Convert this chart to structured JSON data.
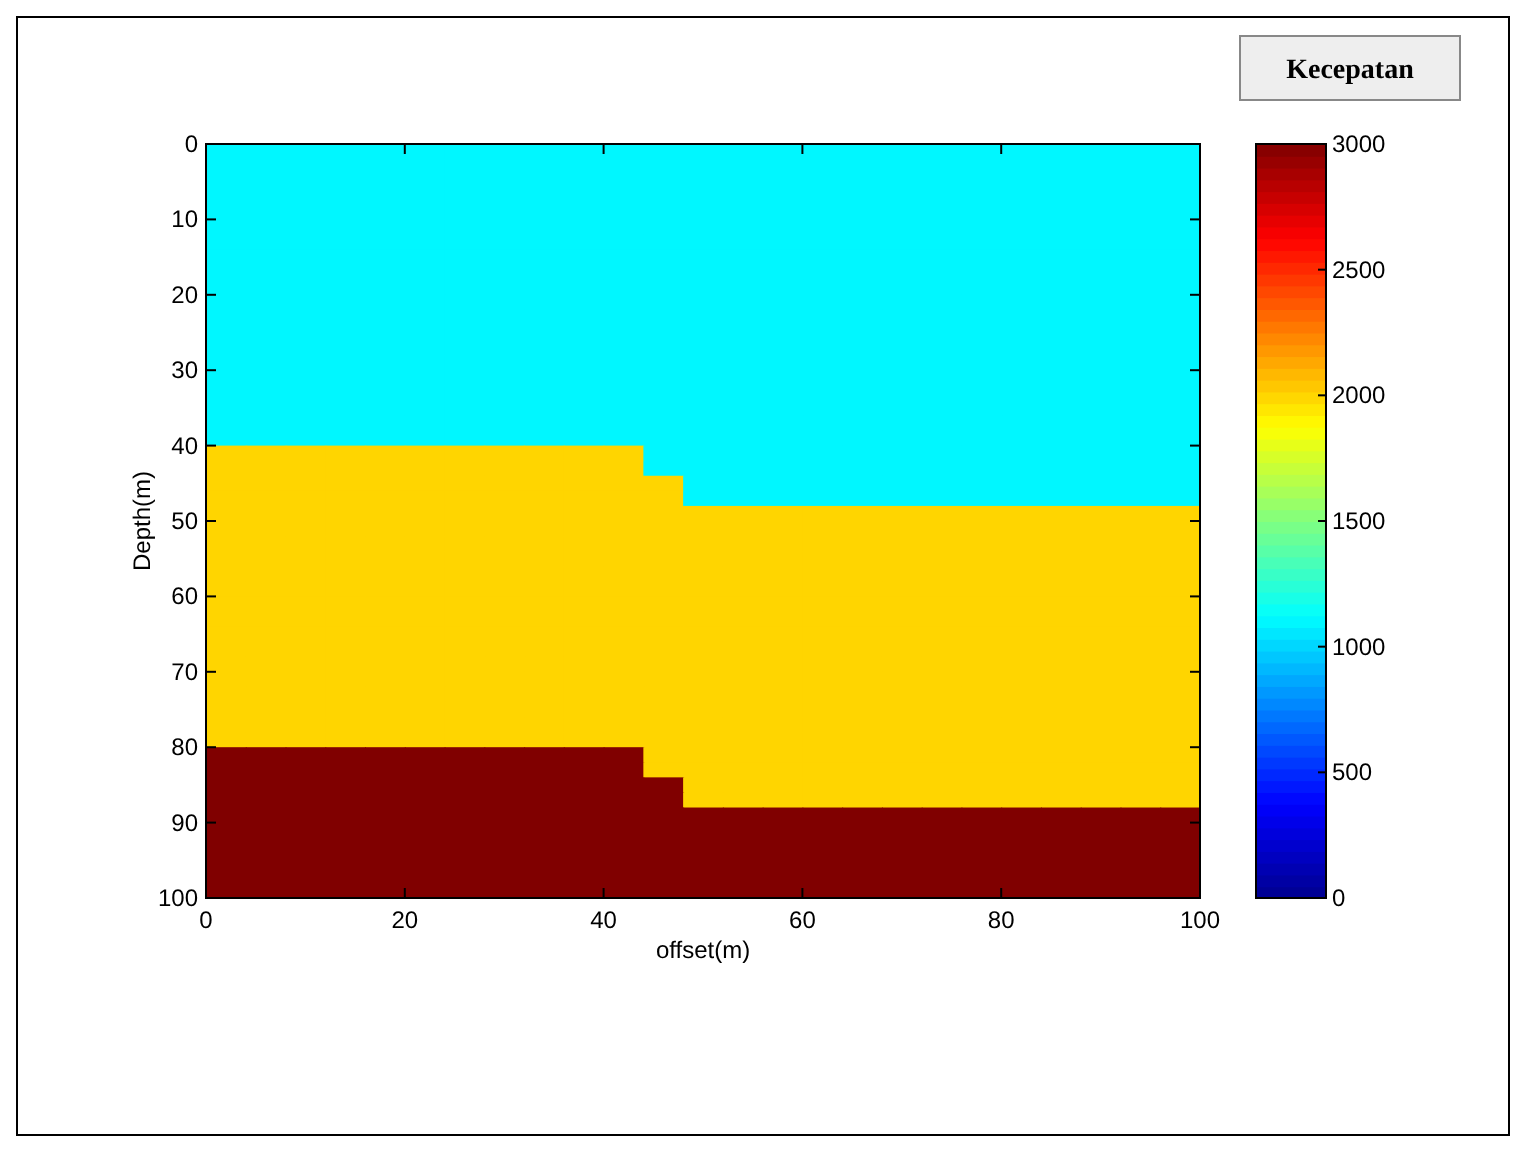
{
  "chart_data": {
    "type": "heatmap",
    "xlabel": "offset(m)",
    "ylabel": "Depth(m)",
    "clabel": "Kecepatan",
    "xlim": [
      0,
      100
    ],
    "xticks": [
      0,
      20,
      40,
      60,
      80,
      100
    ],
    "ylim": [
      100,
      0
    ],
    "yticks": [
      0,
      10,
      20,
      30,
      40,
      50,
      60,
      70,
      80,
      90,
      100
    ],
    "clim": [
      0,
      3000
    ],
    "cticks": [
      0,
      500,
      1000,
      1500,
      2000,
      2500,
      3000
    ],
    "cells": [
      [
        1100,
        1100,
        1100,
        1100,
        1100,
        1100,
        1100,
        1100,
        1100,
        1100,
        1100,
        1100,
        1100,
        1100,
        1100,
        1100,
        1100,
        1100,
        1100,
        1100,
        1100,
        1100,
        1100,
        1100,
        1100
      ],
      [
        1100,
        1100,
        1100,
        1100,
        1100,
        1100,
        1100,
        1100,
        1100,
        1100,
        1100,
        1100,
        1100,
        1100,
        1100,
        1100,
        1100,
        1100,
        1100,
        1100,
        1100,
        1100,
        1100,
        1100,
        1100
      ],
      [
        1100,
        1100,
        1100,
        1100,
        1100,
        1100,
        1100,
        1100,
        1100,
        1100,
        1100,
        1100,
        1100,
        1100,
        1100,
        1100,
        1100,
        1100,
        1100,
        1100,
        1100,
        1100,
        1100,
        1100,
        1100
      ],
      [
        1100,
        1100,
        1100,
        1100,
        1100,
        1100,
        1100,
        1100,
        1100,
        1100,
        1100,
        1100,
        1100,
        1100,
        1100,
        1100,
        1100,
        1100,
        1100,
        1100,
        1100,
        1100,
        1100,
        1100,
        1100
      ],
      [
        1100,
        1100,
        1100,
        1100,
        1100,
        1100,
        1100,
        1100,
        1100,
        1100,
        1100,
        1100,
        1100,
        1100,
        1100,
        1100,
        1100,
        1100,
        1100,
        1100,
        1100,
        1100,
        1100,
        1100,
        1100
      ],
      [
        1100,
        1100,
        1100,
        1100,
        1100,
        1100,
        1100,
        1100,
        1100,
        1100,
        1100,
        1100,
        1100,
        1100,
        1100,
        1100,
        1100,
        1100,
        1100,
        1100,
        1100,
        1100,
        1100,
        1100,
        1100
      ],
      [
        1100,
        1100,
        1100,
        1100,
        1100,
        1100,
        1100,
        1100,
        1100,
        1100,
        1100,
        1100,
        1100,
        1100,
        1100,
        1100,
        1100,
        1100,
        1100,
        1100,
        1100,
        1100,
        1100,
        1100,
        1100
      ],
      [
        1100,
        1100,
        1100,
        1100,
        1100,
        1100,
        1100,
        1100,
        1100,
        1100,
        1100,
        1100,
        1100,
        1100,
        1100,
        1100,
        1100,
        1100,
        1100,
        1100,
        1100,
        1100,
        1100,
        1100,
        1100
      ],
      [
        1100,
        1100,
        1100,
        1100,
        1100,
        1100,
        1100,
        1100,
        1100,
        1100,
        1100,
        1100,
        1100,
        1100,
        1100,
        1100,
        1100,
        1100,
        1100,
        1100,
        1100,
        1100,
        1100,
        1100,
        1100
      ],
      [
        1100,
        1100,
        1100,
        1100,
        1100,
        1100,
        1100,
        1100,
        1100,
        1100,
        1100,
        1100,
        1100,
        1100,
        1100,
        1100,
        1100,
        1100,
        1100,
        1100,
        1100,
        1100,
        1100,
        1100,
        1100
      ],
      [
        1100,
        1100,
        1100,
        1100,
        1100,
        1100,
        1100,
        1100,
        1100,
        1100,
        1100,
        1100,
        1100,
        1100,
        1100,
        1100,
        1100,
        1100,
        1100,
        1100,
        1100,
        1100,
        1100,
        1100,
        1100
      ],
      [
        1100,
        1100,
        1100,
        1100,
        1100,
        1100,
        1100,
        1100,
        1100,
        1100,
        1100,
        1100,
        1100,
        1100,
        1100,
        1100,
        1100,
        1100,
        1100,
        1100,
        1100,
        1100,
        1100,
        1100,
        1100
      ],
      [
        1100,
        1100,
        1100,
        1100,
        1100,
        1100,
        1100,
        1100,
        1100,
        1100,
        1100,
        1100,
        1100,
        1100,
        1100,
        1100,
        1100,
        1100,
        1100,
        1100,
        1100,
        1100,
        1100,
        1100,
        1100
      ],
      [
        1100,
        1100,
        1100,
        1100,
        1100,
        1100,
        1100,
        1100,
        1100,
        1100,
        1100,
        1100,
        1100,
        1100,
        1100,
        1100,
        1100,
        1100,
        1100,
        1100,
        1100,
        1100,
        1100,
        1100,
        1100
      ],
      [
        1100,
        1100,
        1100,
        1100,
        1100,
        1100,
        1100,
        1100,
        1100,
        1100,
        1100,
        1100,
        1100,
        1100,
        1100,
        1100,
        1100,
        1100,
        1100,
        1100,
        1100,
        1100,
        1100,
        1100,
        1100
      ],
      [
        1100,
        1100,
        1100,
        1100,
        1100,
        1100,
        1100,
        1100,
        1100,
        1100,
        1100,
        1100,
        1100,
        1100,
        1100,
        1100,
        1100,
        1100,
        1100,
        1100,
        1100,
        1100,
        1100,
        1100,
        1100
      ],
      [
        1100,
        1100,
        1100,
        1100,
        1100,
        1100,
        1100,
        1100,
        1100,
        1100,
        1100,
        1100,
        1100,
        1100,
        1100,
        1100,
        1100,
        1100,
        1100,
        1100,
        1100,
        1100,
        1100,
        1100,
        1100
      ],
      [
        1100,
        1100,
        1100,
        1100,
        1100,
        1100,
        1100,
        1100,
        1100,
        1100,
        1100,
        1100,
        1100,
        1100,
        1100,
        1100,
        1100,
        1100,
        1100,
        1100,
        1100,
        1100,
        1100,
        1100,
        1100
      ],
      [
        1100,
        1100,
        1100,
        1100,
        1100,
        1100,
        1100,
        1100,
        1100,
        1100,
        1100,
        1100,
        1100,
        1100,
        1100,
        1100,
        1100,
        1100,
        1100,
        1100,
        1100,
        1100,
        1100,
        1100,
        1100
      ],
      [
        1100,
        1100,
        1100,
        1100,
        1100,
        1100,
        1100,
        1100,
        1100,
        1100,
        1100,
        1100,
        1100,
        1100,
        1100,
        1100,
        1100,
        1100,
        1100,
        1100,
        1100,
        1100,
        1100,
        1100,
        1100
      ],
      [
        2000,
        2000,
        2000,
        2000,
        2000,
        2000,
        2000,
        2000,
        2000,
        2000,
        2000,
        1100,
        1100,
        1100,
        1100,
        1100,
        1100,
        1100,
        1100,
        1100,
        1100,
        1100,
        1100,
        1100,
        1100
      ],
      [
        2000,
        2000,
        2000,
        2000,
        2000,
        2000,
        2000,
        2000,
        2000,
        2000,
        2000,
        1100,
        1100,
        1100,
        1100,
        1100,
        1100,
        1100,
        1100,
        1100,
        1100,
        1100,
        1100,
        1100,
        1100
      ],
      [
        2000,
        2000,
        2000,
        2000,
        2000,
        2000,
        2000,
        2000,
        2000,
        2000,
        2000,
        2000,
        1100,
        1100,
        1100,
        1100,
        1100,
        1100,
        1100,
        1100,
        1100,
        1100,
        1100,
        1100,
        1100
      ],
      [
        2000,
        2000,
        2000,
        2000,
        2000,
        2000,
        2000,
        2000,
        2000,
        2000,
        2000,
        2000,
        1100,
        1100,
        1100,
        1100,
        1100,
        1100,
        1100,
        1100,
        1100,
        1100,
        1100,
        1100,
        1100
      ],
      [
        2000,
        2000,
        2000,
        2000,
        2000,
        2000,
        2000,
        2000,
        2000,
        2000,
        2000,
        2000,
        2000,
        2000,
        2000,
        2000,
        2000,
        2000,
        2000,
        2000,
        2000,
        2000,
        2000,
        2000,
        2000
      ],
      [
        2000,
        2000,
        2000,
        2000,
        2000,
        2000,
        2000,
        2000,
        2000,
        2000,
        2000,
        2000,
        2000,
        2000,
        2000,
        2000,
        2000,
        2000,
        2000,
        2000,
        2000,
        2000,
        2000,
        2000,
        2000
      ],
      [
        2000,
        2000,
        2000,
        2000,
        2000,
        2000,
        2000,
        2000,
        2000,
        2000,
        2000,
        2000,
        2000,
        2000,
        2000,
        2000,
        2000,
        2000,
        2000,
        2000,
        2000,
        2000,
        2000,
        2000,
        2000
      ],
      [
        2000,
        2000,
        2000,
        2000,
        2000,
        2000,
        2000,
        2000,
        2000,
        2000,
        2000,
        2000,
        2000,
        2000,
        2000,
        2000,
        2000,
        2000,
        2000,
        2000,
        2000,
        2000,
        2000,
        2000,
        2000
      ],
      [
        2000,
        2000,
        2000,
        2000,
        2000,
        2000,
        2000,
        2000,
        2000,
        2000,
        2000,
        2000,
        2000,
        2000,
        2000,
        2000,
        2000,
        2000,
        2000,
        2000,
        2000,
        2000,
        2000,
        2000,
        2000
      ],
      [
        2000,
        2000,
        2000,
        2000,
        2000,
        2000,
        2000,
        2000,
        2000,
        2000,
        2000,
        2000,
        2000,
        2000,
        2000,
        2000,
        2000,
        2000,
        2000,
        2000,
        2000,
        2000,
        2000,
        2000,
        2000
      ],
      [
        2000,
        2000,
        2000,
        2000,
        2000,
        2000,
        2000,
        2000,
        2000,
        2000,
        2000,
        2000,
        2000,
        2000,
        2000,
        2000,
        2000,
        2000,
        2000,
        2000,
        2000,
        2000,
        2000,
        2000,
        2000
      ],
      [
        2000,
        2000,
        2000,
        2000,
        2000,
        2000,
        2000,
        2000,
        2000,
        2000,
        2000,
        2000,
        2000,
        2000,
        2000,
        2000,
        2000,
        2000,
        2000,
        2000,
        2000,
        2000,
        2000,
        2000,
        2000
      ],
      [
        2000,
        2000,
        2000,
        2000,
        2000,
        2000,
        2000,
        2000,
        2000,
        2000,
        2000,
        2000,
        2000,
        2000,
        2000,
        2000,
        2000,
        2000,
        2000,
        2000,
        2000,
        2000,
        2000,
        2000,
        2000
      ],
      [
        2000,
        2000,
        2000,
        2000,
        2000,
        2000,
        2000,
        2000,
        2000,
        2000,
        2000,
        2000,
        2000,
        2000,
        2000,
        2000,
        2000,
        2000,
        2000,
        2000,
        2000,
        2000,
        2000,
        2000,
        2000
      ],
      [
        2000,
        2000,
        2000,
        2000,
        2000,
        2000,
        2000,
        2000,
        2000,
        2000,
        2000,
        2000,
        2000,
        2000,
        2000,
        2000,
        2000,
        2000,
        2000,
        2000,
        2000,
        2000,
        2000,
        2000,
        2000
      ],
      [
        2000,
        2000,
        2000,
        2000,
        2000,
        2000,
        2000,
        2000,
        2000,
        2000,
        2000,
        2000,
        2000,
        2000,
        2000,
        2000,
        2000,
        2000,
        2000,
        2000,
        2000,
        2000,
        2000,
        2000,
        2000
      ],
      [
        2000,
        2000,
        2000,
        2000,
        2000,
        2000,
        2000,
        2000,
        2000,
        2000,
        2000,
        2000,
        2000,
        2000,
        2000,
        2000,
        2000,
        2000,
        2000,
        2000,
        2000,
        2000,
        2000,
        2000,
        2000
      ],
      [
        2000,
        2000,
        2000,
        2000,
        2000,
        2000,
        2000,
        2000,
        2000,
        2000,
        2000,
        2000,
        2000,
        2000,
        2000,
        2000,
        2000,
        2000,
        2000,
        2000,
        2000,
        2000,
        2000,
        2000,
        2000
      ],
      [
        2000,
        2000,
        2000,
        2000,
        2000,
        2000,
        2000,
        2000,
        2000,
        2000,
        2000,
        2000,
        2000,
        2000,
        2000,
        2000,
        2000,
        2000,
        2000,
        2000,
        2000,
        2000,
        2000,
        2000,
        2000
      ],
      [
        2000,
        2000,
        2000,
        2000,
        2000,
        2000,
        2000,
        2000,
        2000,
        2000,
        2000,
        2000,
        2000,
        2000,
        2000,
        2000,
        2000,
        2000,
        2000,
        2000,
        2000,
        2000,
        2000,
        2000,
        2000
      ],
      [
        3000,
        3000,
        3000,
        3000,
        3000,
        3000,
        3000,
        3000,
        3000,
        3000,
        3000,
        2000,
        2000,
        2000,
        2000,
        2000,
        2000,
        2000,
        2000,
        2000,
        2000,
        2000,
        2000,
        2000,
        2000
      ],
      [
        3000,
        3000,
        3000,
        3000,
        3000,
        3000,
        3000,
        3000,
        3000,
        3000,
        3000,
        2000,
        2000,
        2000,
        2000,
        2000,
        2000,
        2000,
        2000,
        2000,
        2000,
        2000,
        2000,
        2000,
        2000
      ],
      [
        3000,
        3000,
        3000,
        3000,
        3000,
        3000,
        3000,
        3000,
        3000,
        3000,
        3000,
        3000,
        2000,
        2000,
        2000,
        2000,
        2000,
        2000,
        2000,
        2000,
        2000,
        2000,
        2000,
        2000,
        2000
      ],
      [
        3000,
        3000,
        3000,
        3000,
        3000,
        3000,
        3000,
        3000,
        3000,
        3000,
        3000,
        3000,
        2000,
        2000,
        2000,
        2000,
        2000,
        2000,
        2000,
        2000,
        2000,
        2000,
        2000,
        2000,
        2000
      ],
      [
        3000,
        3000,
        3000,
        3000,
        3000,
        3000,
        3000,
        3000,
        3000,
        3000,
        3000,
        3000,
        3000,
        3000,
        3000,
        3000,
        3000,
        3000,
        3000,
        3000,
        3000,
        3000,
        3000,
        3000,
        3000
      ],
      [
        3000,
        3000,
        3000,
        3000,
        3000,
        3000,
        3000,
        3000,
        3000,
        3000,
        3000,
        3000,
        3000,
        3000,
        3000,
        3000,
        3000,
        3000,
        3000,
        3000,
        3000,
        3000,
        3000,
        3000,
        3000
      ],
      [
        3000,
        3000,
        3000,
        3000,
        3000,
        3000,
        3000,
        3000,
        3000,
        3000,
        3000,
        3000,
        3000,
        3000,
        3000,
        3000,
        3000,
        3000,
        3000,
        3000,
        3000,
        3000,
        3000,
        3000,
        3000
      ],
      [
        3000,
        3000,
        3000,
        3000,
        3000,
        3000,
        3000,
        3000,
        3000,
        3000,
        3000,
        3000,
        3000,
        3000,
        3000,
        3000,
        3000,
        3000,
        3000,
        3000,
        3000,
        3000,
        3000,
        3000,
        3000
      ],
      [
        3000,
        3000,
        3000,
        3000,
        3000,
        3000,
        3000,
        3000,
        3000,
        3000,
        3000,
        3000,
        3000,
        3000,
        3000,
        3000,
        3000,
        3000,
        3000,
        3000,
        3000,
        3000,
        3000,
        3000,
        3000
      ],
      [
        3000,
        3000,
        3000,
        3000,
        3000,
        3000,
        3000,
        3000,
        3000,
        3000,
        3000,
        3000,
        3000,
        3000,
        3000,
        3000,
        3000,
        3000,
        3000,
        3000,
        3000,
        3000,
        3000,
        3000,
        3000
      ]
    ]
  }
}
